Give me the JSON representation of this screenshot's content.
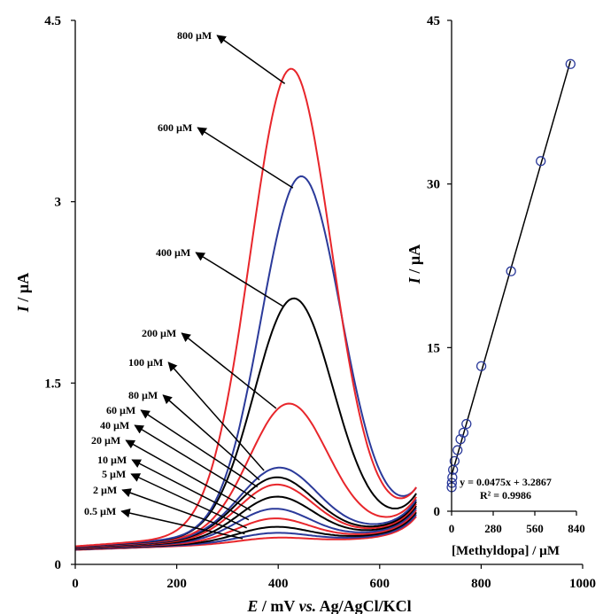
{
  "chart_data": [
    {
      "type": "line",
      "subtype": "differential pulse voltammograms",
      "xlabel": {
        "italic": "E",
        "rest": " / mV ",
        "italic2": "vs.",
        "rest2": " Ag/AgCl/KCl"
      },
      "ylabel": {
        "italic": "I",
        "rest": " / µA"
      },
      "xlim": [
        0,
        1000
      ],
      "ylim": [
        0,
        4.5
      ],
      "x_ticks": [
        "0",
        "200",
        "400",
        "600",
        "800",
        "1000"
      ],
      "y_ticks": [
        "0",
        "1.5",
        "3",
        "4.5"
      ],
      "x_tick_values": [
        0,
        200,
        400,
        600,
        800,
        1000
      ],
      "y_tick_values": [
        0,
        1.5,
        3,
        4.5
      ],
      "series": [
        {
          "name": "0.5 µM",
          "color": "#e8262b",
          "peak_x": 390,
          "peak_y": 0.22
        },
        {
          "name": "2 µM",
          "color": "#2b3a9a",
          "peak_x": 390,
          "peak_y": 0.26
        },
        {
          "name": "5 µM",
          "color": "#000000",
          "peak_x": 390,
          "peak_y": 0.31
        },
        {
          "name": "10 µM",
          "color": "#e8262b",
          "peak_x": 390,
          "peak_y": 0.38
        },
        {
          "name": "20 µM",
          "color": "#2b3a9a",
          "peak_x": 390,
          "peak_y": 0.46
        },
        {
          "name": "40 µM",
          "color": "#000000",
          "peak_x": 395,
          "peak_y": 0.56
        },
        {
          "name": "60 µM",
          "color": "#e8262b",
          "peak_x": 395,
          "peak_y": 0.66
        },
        {
          "name": "80 µM",
          "color": "#000000",
          "peak_x": 395,
          "peak_y": 0.72
        },
        {
          "name": "100 µM",
          "color": "#2b3a9a",
          "peak_x": 400,
          "peak_y": 0.8
        },
        {
          "name": "200 µM",
          "color": "#e8262b",
          "peak_x": 420,
          "peak_y": 1.33
        },
        {
          "name": "400 µM",
          "color": "#000000",
          "peak_x": 430,
          "peak_y": 2.2
        },
        {
          "name": "600 µM",
          "color": "#2b3a9a",
          "peak_x": 445,
          "peak_y": 3.21
        },
        {
          "name": "800 µM",
          "color": "#e8262b",
          "peak_x": 425,
          "peak_y": 4.1
        }
      ]
    },
    {
      "type": "scatter",
      "subtype": "calibration plot with linear fit",
      "xlabel": "[Methyldopa] / µM",
      "ylabel": {
        "italic": "I",
        "rest": " / µA"
      },
      "xlim": [
        0,
        840
      ],
      "ylim": [
        0,
        45
      ],
      "x_ticks": [
        "0",
        "280",
        "560",
        "840"
      ],
      "y_ticks": [
        "0",
        "15",
        "30",
        "45"
      ],
      "x_tick_values": [
        0,
        280,
        560,
        840
      ],
      "y_tick_values": [
        0,
        15,
        30,
        45
      ],
      "points": [
        {
          "x": 0.5,
          "y": 2.2
        },
        {
          "x": 2,
          "y": 2.6
        },
        {
          "x": 5,
          "y": 3.1
        },
        {
          "x": 10,
          "y": 3.8
        },
        {
          "x": 20,
          "y": 4.6
        },
        {
          "x": 40,
          "y": 5.6
        },
        {
          "x": 60,
          "y": 6.6
        },
        {
          "x": 80,
          "y": 7.2
        },
        {
          "x": 100,
          "y": 8.0
        },
        {
          "x": 200,
          "y": 13.3
        },
        {
          "x": 400,
          "y": 22.0
        },
        {
          "x": 600,
          "y": 32.1
        },
        {
          "x": 800,
          "y": 41.0
        }
      ],
      "fit": {
        "slope": 0.0475,
        "intercept": 3.2867
      },
      "equation": "y = 0.0475x + 3.2867",
      "r_squared": "R² = 0.9986"
    }
  ]
}
